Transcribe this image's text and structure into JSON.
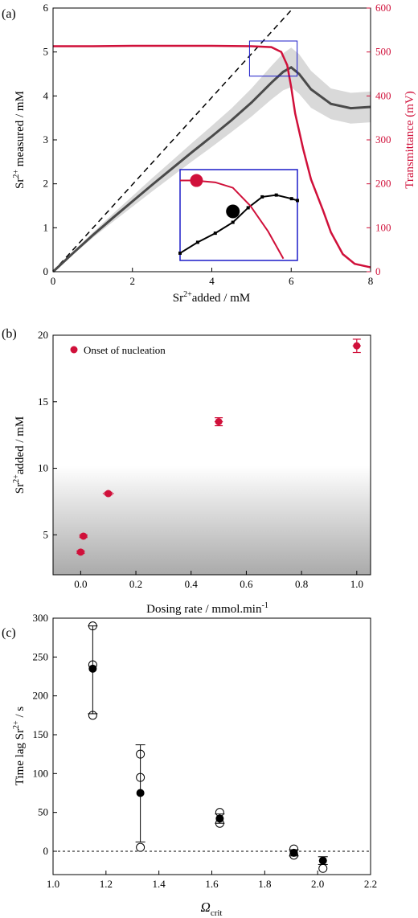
{
  "chart_data": [
    {
      "panel": "(a)",
      "type": "line",
      "xlabel_base": "Sr",
      "xlabel_sup": "2+",
      "xlabel_rest": "added / mM",
      "ylabel_base": "Sr",
      "ylabel_sup": "2+",
      "ylabel_rest": " measured / mM",
      "y2label": "Transmittance (mV)",
      "xlim": [
        0,
        8
      ],
      "ylim": [
        0,
        6
      ],
      "y2lim": [
        0,
        600
      ],
      "xticks": [
        0,
        2,
        4,
        6,
        8
      ],
      "yticks": [
        0,
        1,
        2,
        3,
        4,
        5,
        6
      ],
      "y2ticks": [
        0,
        100,
        200,
        300,
        400,
        500,
        600
      ],
      "colors": {
        "measured": "#4a4a4a",
        "band": "#d9d9d9",
        "transmittance": "#d0103a",
        "reference": "#000000",
        "inset_frame": "#1c1cc8"
      },
      "series": [
        {
          "role": "reference",
          "x": [
            0,
            6.05
          ],
          "y": [
            0,
            6.0
          ]
        },
        {
          "role": "measured",
          "axis": "left",
          "x": [
            0,
            0.5,
            1,
            1.5,
            2,
            2.5,
            3,
            3.5,
            4,
            4.5,
            5,
            5.5,
            5.8,
            6.0,
            6.2,
            6.5,
            7,
            7.5,
            8
          ],
          "y": [
            0,
            0.42,
            0.83,
            1.22,
            1.6,
            1.98,
            2.35,
            2.72,
            3.08,
            3.45,
            3.85,
            4.3,
            4.55,
            4.65,
            4.5,
            4.15,
            3.82,
            3.72,
            3.75
          ],
          "band": [
            0,
            0.03,
            0.06,
            0.09,
            0.12,
            0.15,
            0.18,
            0.21,
            0.24,
            0.27,
            0.32,
            0.38,
            0.42,
            0.45,
            0.45,
            0.42,
            0.35,
            0.35,
            0.35
          ]
        },
        {
          "role": "transmittance",
          "axis": "right",
          "x": [
            0,
            1,
            2,
            3,
            4,
            5,
            5.5,
            5.75,
            5.9,
            6.0,
            6.1,
            6.3,
            6.5,
            6.8,
            7.0,
            7.3,
            7.6,
            8
          ],
          "y": [
            513,
            513,
            514,
            514,
            514,
            513,
            511,
            500,
            470,
            420,
            360,
            280,
            210,
            140,
            90,
            40,
            18,
            10
          ]
        }
      ],
      "inset": {
        "zoom_x": [
          4.95,
          6.15
        ],
        "zoom_y": [
          4.45,
          5.25
        ],
        "black": [
          [
            0,
            0.08
          ],
          [
            0.15,
            0.2
          ],
          [
            0.3,
            0.3
          ],
          [
            0.45,
            0.42
          ],
          [
            0.58,
            0.58
          ],
          [
            0.7,
            0.7
          ],
          [
            0.82,
            0.72
          ],
          [
            0.95,
            0.68
          ],
          [
            1,
            0.66
          ]
        ],
        "red": [
          [
            0,
            0.88
          ],
          [
            0.12,
            0.88
          ],
          [
            0.3,
            0.86
          ],
          [
            0.45,
            0.8
          ],
          [
            0.6,
            0.6
          ],
          [
            0.75,
            0.32
          ],
          [
            0.88,
            0.02
          ]
        ],
        "red_marker": [
          0.14,
          0.88
        ],
        "black_marker": [
          0.45,
          0.54
        ]
      }
    },
    {
      "panel": "(b)",
      "type": "scatter",
      "xlabel": "Dosing rate / mmol.min",
      "xlabel_sup": "-1",
      "ylabel_base": "Sr",
      "ylabel_sup": "2+",
      "ylabel_rest": "added / mM",
      "xlim": [
        -0.1,
        1.05
      ],
      "ylim": [
        2,
        20
      ],
      "xticks": [
        0.0,
        0.2,
        0.4,
        0.6,
        0.8,
        1.0
      ],
      "xticklabels": [
        "0.0",
        "0.2",
        "0.4",
        "0.6",
        "0.8",
        "1.0"
      ],
      "yticks": [
        5,
        10,
        15,
        20
      ],
      "shaded_region_y": [
        2,
        10.2
      ],
      "legend": "Onset of nucleation",
      "legend_position": "top-left",
      "color": "#d0103a",
      "points": [
        {
          "x": 0.0,
          "y": 3.7,
          "xerr": 0.015,
          "yerr": 0.1
        },
        {
          "x": 0.01,
          "y": 4.9,
          "xerr": 0.015,
          "yerr": 0.1
        },
        {
          "x": 0.1,
          "y": 8.1,
          "xerr": 0.02,
          "yerr": 0.1
        },
        {
          "x": 0.5,
          "y": 13.5,
          "xerr": 0.015,
          "yerr": 0.3
        },
        {
          "x": 1.0,
          "y": 19.2,
          "xerr": 0.015,
          "yerr": 0.5
        }
      ]
    },
    {
      "panel": "(c)",
      "type": "scatter",
      "xlabel_symbol": "Ω",
      "xlabel_sub": "crit",
      "ylabel_base": "Time lag Sr",
      "ylabel_sup": "2+",
      "ylabel_rest": " / s",
      "xlim": [
        1.0,
        2.2
      ],
      "ylim": [
        -30,
        300
      ],
      "xticks": [
        1.0,
        1.2,
        1.4,
        1.6,
        1.8,
        2.0,
        2.2
      ],
      "xticklabels": [
        "1.0",
        "1.2",
        "1.4",
        "1.6",
        "1.8",
        "2.0",
        "2.2"
      ],
      "yticks": [
        0,
        50,
        100,
        150,
        200,
        250,
        300
      ],
      "zero_line": true,
      "groups": [
        {
          "x": 1.15,
          "mean": 235,
          "err_low": 177,
          "err_high": 290,
          "open": [
            290,
            240,
            175
          ]
        },
        {
          "x": 1.33,
          "mean": 75,
          "err_low": 12,
          "err_high": 137,
          "open": [
            125,
            95,
            5
          ]
        },
        {
          "x": 1.63,
          "mean": 42,
          "err_low": 36,
          "err_high": 48,
          "open": [
            50,
            36
          ]
        },
        {
          "x": 1.91,
          "mean": -2,
          "err_low": -6,
          "err_high": 2,
          "open": [
            3,
            -5
          ]
        },
        {
          "x": 2.02,
          "mean": -12,
          "err_low": -17,
          "err_high": -7,
          "open": [
            -22
          ]
        }
      ]
    }
  ]
}
